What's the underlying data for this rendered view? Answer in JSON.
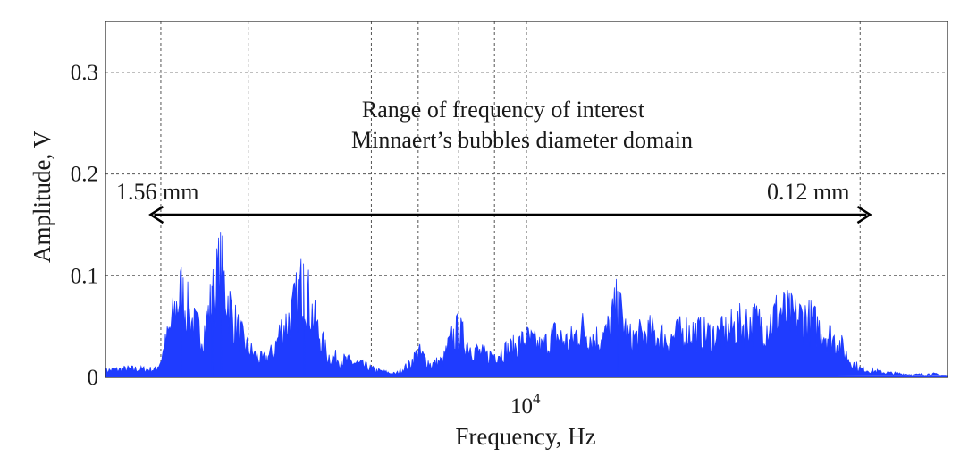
{
  "chart_data": {
    "type": "area",
    "title": "",
    "xlabel": "Frequency, Hz",
    "ylabel": "Amplitude, V",
    "x_scale": "log",
    "xlim": [
      2500,
      40000
    ],
    "ylim": [
      0,
      0.35
    ],
    "grid": true,
    "y_ticks": [
      {
        "value": 0,
        "label": "0"
      },
      {
        "value": 0.1,
        "label": "0.1"
      },
      {
        "value": 0.2,
        "label": "0.2"
      },
      {
        "value": 0.3,
        "label": "0.3"
      }
    ],
    "x_major_ticks": [
      {
        "value": 10000,
        "base": "10",
        "exponent": "4"
      }
    ],
    "x_minor_gridlines": [
      3000,
      4000,
      5000,
      6000,
      7000,
      8000,
      9000,
      20000,
      30000
    ],
    "annotations": {
      "line1": "Range of frequency of interest",
      "line2": "Minnaert’s bubbles diameter domain",
      "left_label": "1.56 mm",
      "right_label": "0.12 mm",
      "arrow_x": [
        2900,
        31000
      ],
      "arrow_y": 0.16
    },
    "series": [
      {
        "color": "#1f3cff",
        "x": [
          2500,
          2700,
          2950,
          3000,
          3100,
          3200,
          3350,
          3450,
          3550,
          3650,
          3800,
          3950,
          4100,
          4200,
          4350,
          4450,
          4600,
          4800,
          5000,
          5200,
          5500,
          5800,
          6100,
          6500,
          6800,
          7000,
          7300,
          7600,
          7800,
          8000,
          8200,
          8500,
          8800,
          9200,
          9600,
          10000,
          10500,
          11000,
          11500,
          12000,
          12500,
          13000,
          13500,
          14000,
          14500,
          15000,
          16000,
          17000,
          18000,
          19000,
          20000,
          21000,
          22000,
          23000,
          24000,
          25000,
          26000,
          27000,
          28000,
          29000,
          30000,
          31000,
          33000,
          36000,
          38000,
          40000
        ],
        "y": [
          0.008,
          0.01,
          0.009,
          0.02,
          0.06,
          0.1,
          0.06,
          0.05,
          0.09,
          0.128,
          0.07,
          0.04,
          0.025,
          0.02,
          0.03,
          0.055,
          0.07,
          0.112,
          0.06,
          0.025,
          0.02,
          0.015,
          0.008,
          0.004,
          0.015,
          0.03,
          0.015,
          0.02,
          0.045,
          0.055,
          0.04,
          0.03,
          0.025,
          0.03,
          0.035,
          0.045,
          0.035,
          0.05,
          0.04,
          0.058,
          0.045,
          0.05,
          0.085,
          0.045,
          0.048,
          0.052,
          0.045,
          0.055,
          0.05,
          0.05,
          0.06,
          0.065,
          0.06,
          0.078,
          0.07,
          0.07,
          0.06,
          0.05,
          0.04,
          0.02,
          0.01,
          0.008,
          0.005,
          0.003,
          0.004,
          0.002
        ]
      }
    ]
  }
}
